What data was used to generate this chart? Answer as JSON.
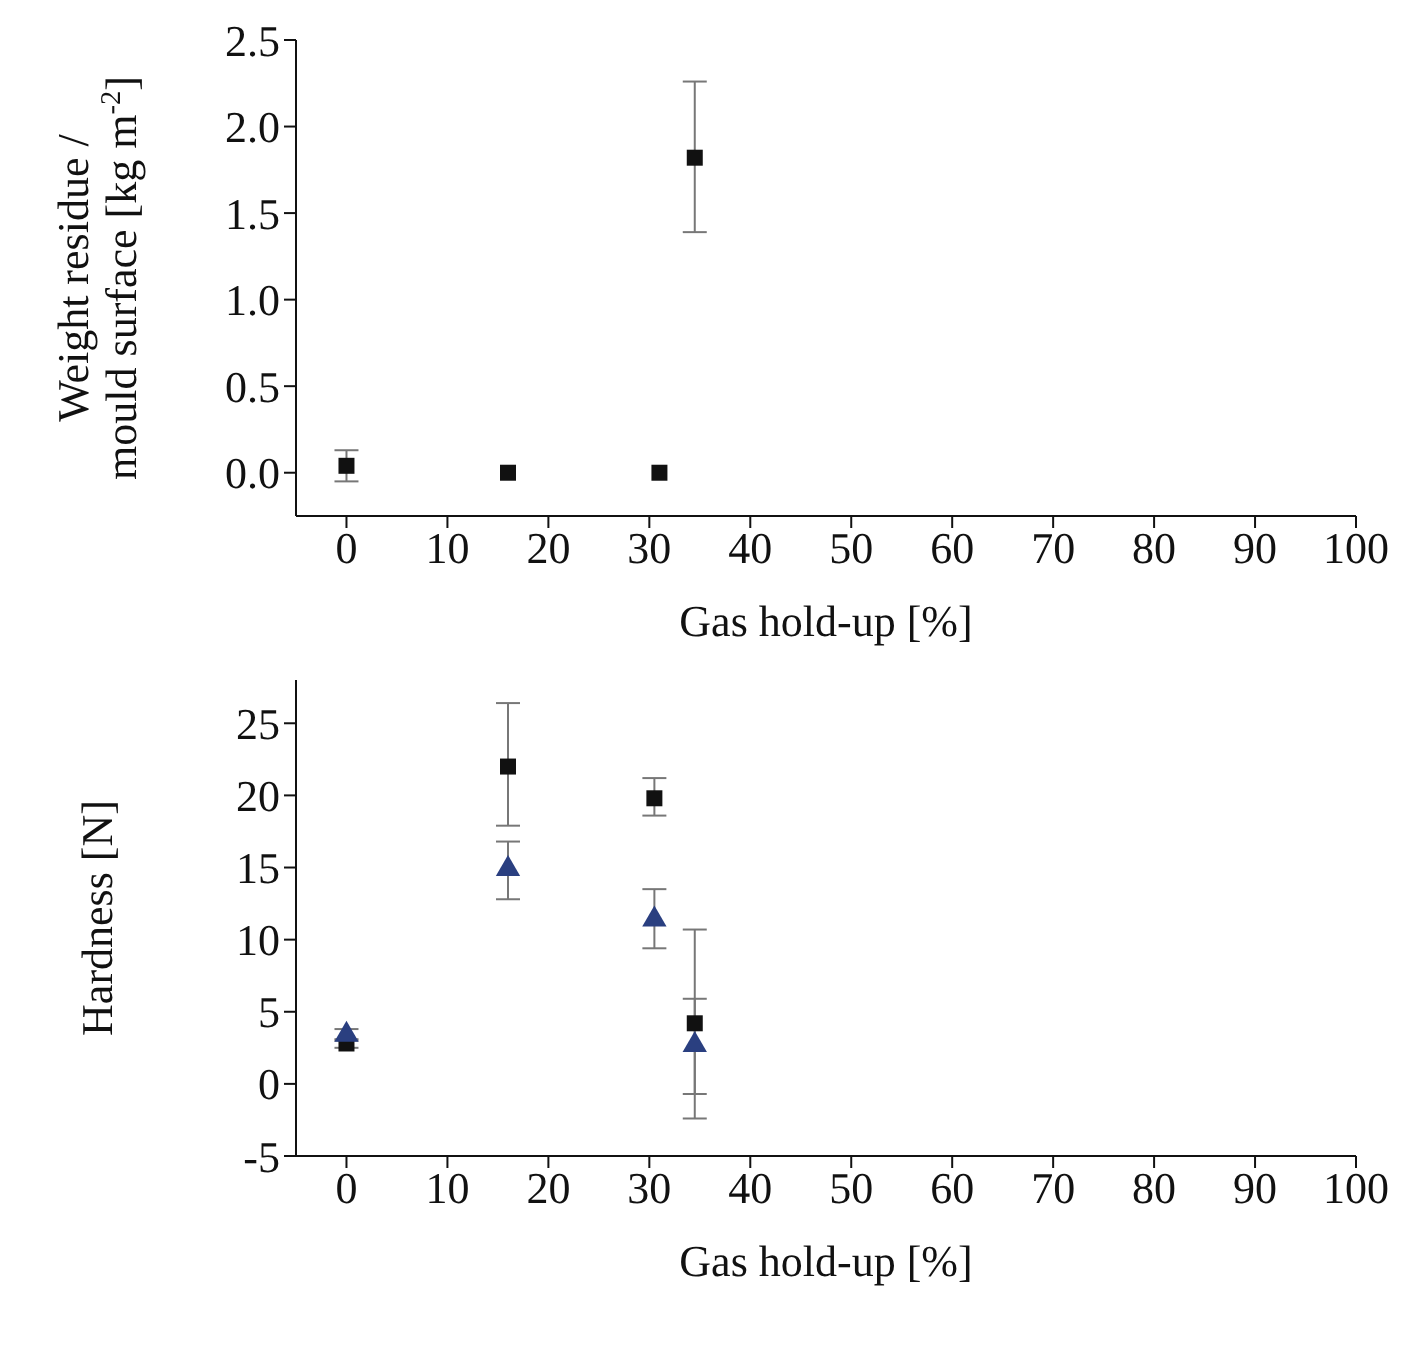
{
  "chart_data": [
    {
      "type": "scatter",
      "xlabel": "Gas hold-up [%]",
      "ylabel": "Weight residue /\nmould surface [kg m$^{-2}$]",
      "xlim": [
        -5,
        100
      ],
      "xticks": [
        0,
        10,
        20,
        30,
        40,
        50,
        60,
        70,
        80,
        90,
        100
      ],
      "ylim": [
        -0.25,
        2.5
      ],
      "yticks": [
        {
          "value": 0,
          "label": "0.0"
        },
        {
          "value": 0.5,
          "label": "0.5"
        },
        {
          "value": 1,
          "label": "1.0"
        },
        {
          "value": 1.5,
          "label": "1.5"
        },
        {
          "value": 2,
          "label": "2.0"
        },
        {
          "value": 2.5,
          "label": "2.5"
        }
      ],
      "grid": false,
      "legend": false,
      "series": [
        {
          "color": "#111111",
          "marker": "square",
          "x": [
            0,
            16,
            31,
            34.5
          ],
          "values": [
            0.04,
            0.0,
            0.0,
            1.82
          ],
          "errors": [
            0.09,
            null,
            null,
            [
              1.39,
              2.26
            ]
          ]
        }
      ]
    },
    {
      "type": "scatter",
      "xlabel": "Gas hold-up [%]",
      "ylabel": "Hardness [N]",
      "xlim": [
        -5,
        100
      ],
      "xticks": [
        0,
        10,
        20,
        30,
        40,
        50,
        60,
        70,
        80,
        90,
        100
      ],
      "ylim": [
        -5,
        28
      ],
      "yticks": [
        -5,
        0,
        5,
        10,
        15,
        20,
        25
      ],
      "grid": false,
      "legend": false,
      "series": [
        {
          "color": "#111111",
          "marker": "square",
          "x": [
            0,
            16,
            30.5,
            34.5
          ],
          "values": [
            2.8,
            22,
            19.8,
            4.2
          ],
          "errors": [
            0.3,
            [
              17.9,
              26.4
            ],
            [
              18.6,
              21.2
            ],
            [
              -2.4,
              10.7
            ]
          ]
        },
        {
          "color": "#2a3f80",
          "marker": "triangle",
          "x": [
            0,
            16,
            30.5,
            34.5
          ],
          "values": [
            3.4,
            14.9,
            11.4,
            2.7
          ],
          "errors": [
            0.4,
            [
              12.8,
              16.8
            ],
            [
              9.4,
              13.5
            ],
            [
              -0.7,
              5.9
            ]
          ]
        }
      ]
    }
  ]
}
